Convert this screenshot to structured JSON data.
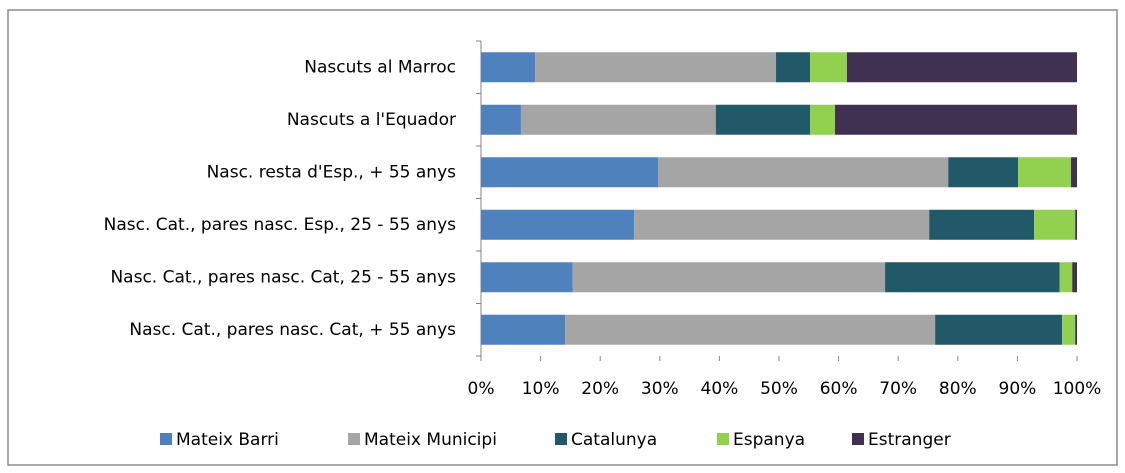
{
  "chart_data": {
    "type": "stacked_bar_horizontal",
    "categories": [
      "Nascuts al Marroc",
      "Nascuts a l'Equador",
      "Nasc. resta d'Esp., + 55 anys",
      "Nasc. Cat., pares nasc. Esp., 25 - 55 anys",
      "Nasc. Cat., pares nasc. Cat, 25 - 55 anys",
      "Nasc. Cat., pares nasc. Cat, + 55 anys"
    ],
    "series": [
      {
        "name": "Mateix Barri",
        "color": "#4f81bd",
        "values": [
          9.1,
          6.7,
          29.7,
          25.7,
          15.4,
          14.1
        ]
      },
      {
        "name": "Mateix Municipi",
        "color": "#a5a5a5",
        "values": [
          40.4,
          32.7,
          48.7,
          49.5,
          52.4,
          62.1
        ]
      },
      {
        "name": "Catalunya",
        "color": "#215968",
        "values": [
          5.7,
          15.8,
          11.7,
          17.6,
          29.3,
          21.3
        ]
      },
      {
        "name": "Espanya",
        "color": "#92d050",
        "values": [
          6.2,
          4.2,
          8.9,
          6.9,
          2.1,
          2.2
        ]
      },
      {
        "name": "Estranger",
        "color": "#403152",
        "values": [
          38.6,
          40.6,
          1.0,
          0.3,
          0.8,
          0.3
        ]
      }
    ],
    "xlim": [
      0,
      100
    ],
    "xticks": [
      {
        "value": 0,
        "label": "0%"
      },
      {
        "value": 10,
        "label": "10%"
      },
      {
        "value": 20,
        "label": "20%"
      },
      {
        "value": 30,
        "label": "30%"
      },
      {
        "value": 40,
        "label": "40%"
      },
      {
        "value": 50,
        "label": "50%"
      },
      {
        "value": 60,
        "label": "60%"
      },
      {
        "value": 70,
        "label": "70%"
      },
      {
        "value": 80,
        "label": "80%"
      },
      {
        "value": 90,
        "label": "90%"
      },
      {
        "value": 100,
        "label": "100%"
      }
    ],
    "legend": "bottom"
  }
}
